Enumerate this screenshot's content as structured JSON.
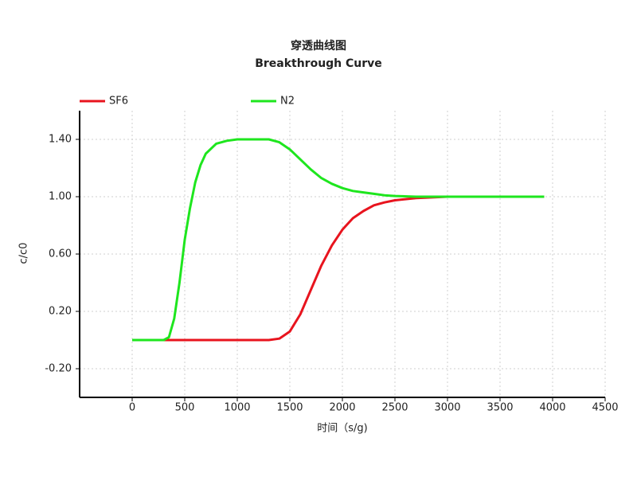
{
  "chart_data": {
    "type": "line",
    "title": "穿透曲线图",
    "subtitle": "Breakthrough Curve",
    "x_label": "时间（s/g)",
    "y_label": "c/c0",
    "x": [
      0,
      300,
      350,
      400,
      450,
      500,
      550,
      600,
      650,
      700,
      800,
      900,
      1000,
      1200,
      1300,
      1400,
      1500,
      1600,
      1700,
      1800,
      1900,
      2000,
      2100,
      2200,
      2300,
      2400,
      2500,
      2700,
      3000,
      3500,
      3920
    ],
    "series": [
      {
        "name": "SF6",
        "color": "#e8141e",
        "values": [
          0,
          0,
          0,
          0,
          0,
          0,
          0,
          0,
          0,
          0,
          0,
          0,
          0,
          0,
          0,
          0.01,
          0.06,
          0.18,
          0.35,
          0.52,
          0.66,
          0.77,
          0.85,
          0.9,
          0.94,
          0.96,
          0.975,
          0.99,
          1.0,
          1.0,
          1.0
        ]
      },
      {
        "name": "N2",
        "color": "#1ee61e",
        "values": [
          0,
          0,
          0.02,
          0.15,
          0.4,
          0.7,
          0.92,
          1.1,
          1.22,
          1.3,
          1.37,
          1.39,
          1.4,
          1.4,
          1.4,
          1.38,
          1.33,
          1.26,
          1.19,
          1.13,
          1.09,
          1.06,
          1.04,
          1.03,
          1.02,
          1.01,
          1.005,
          1.0,
          1.0,
          1.0,
          1.0
        ]
      }
    ],
    "xlim": [
      -500,
      4500
    ],
    "xticks": [
      0,
      500,
      1000,
      1500,
      2000,
      2500,
      3000,
      3500,
      4000,
      4500
    ],
    "ylim": [
      -0.4,
      1.6
    ],
    "yticks": [
      {
        "value": -0.2,
        "label": "-0.20"
      },
      {
        "value": 0.2,
        "label": "0.20"
      },
      {
        "value": 0.6,
        "label": "0.60"
      },
      {
        "value": 1.0,
        "label": "1.00"
      },
      {
        "value": 1.4,
        "label": "1.40"
      }
    ],
    "grid": true,
    "legend": "top-left"
  }
}
